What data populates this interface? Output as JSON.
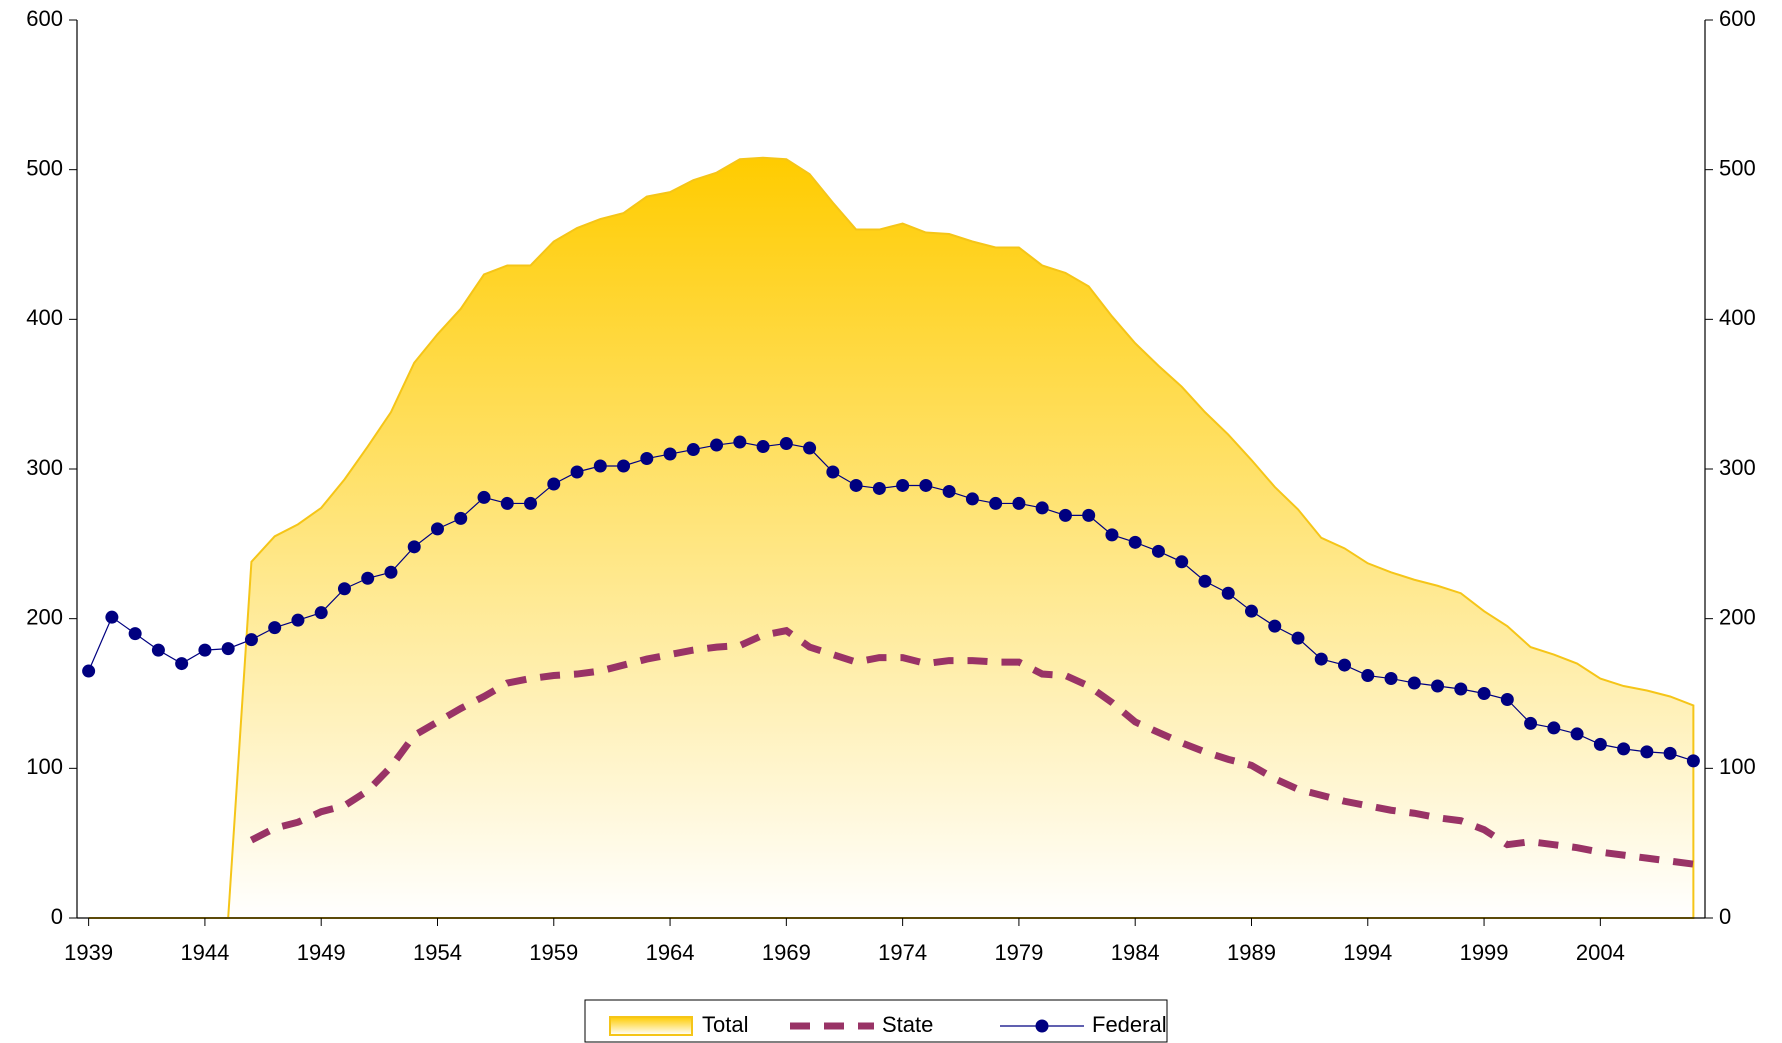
{
  "chart_data": {
    "type": "line",
    "x": [
      1939,
      1940,
      1941,
      1942,
      1943,
      1944,
      1945,
      1946,
      1947,
      1948,
      1949,
      1950,
      1951,
      1952,
      1953,
      1954,
      1955,
      1956,
      1957,
      1958,
      1959,
      1960,
      1961,
      1962,
      1963,
      1964,
      1965,
      1966,
      1967,
      1968,
      1969,
      1970,
      1971,
      1972,
      1973,
      1974,
      1975,
      1976,
      1977,
      1978,
      1979,
      1980,
      1981,
      1982,
      1983,
      1984,
      1985,
      1986,
      1987,
      1988,
      1989,
      1990,
      1991,
      1992,
      1993,
      1994,
      1995,
      1996,
      1997,
      1998,
      1999,
      2000,
      2001,
      2002,
      2003,
      2004,
      2005,
      2006,
      2007,
      2008
    ],
    "xlim": [
      1938.5,
      2008.5
    ],
    "xticks": [
      1939,
      1944,
      1949,
      1954,
      1959,
      1964,
      1969,
      1974,
      1979,
      1984,
      1989,
      1994,
      1999,
      2004
    ],
    "ylim": [
      0,
      600
    ],
    "yticks": [
      0,
      100,
      200,
      300,
      400,
      500,
      600
    ],
    "y2lim": [
      0,
      600
    ],
    "y2ticks": [
      0,
      100,
      200,
      300,
      400,
      500,
      600
    ],
    "series": [
      {
        "name": "Total",
        "color": "#ffcc00",
        "style": "area",
        "values": [
          0,
          0,
          0,
          0,
          0,
          0,
          0,
          238,
          255,
          263,
          274,
          293,
          315,
          338,
          371,
          390,
          407,
          430,
          436,
          436,
          452,
          461,
          467,
          471,
          482,
          485,
          493,
          498,
          507,
          508,
          507,
          497,
          478,
          460,
          460,
          464,
          458,
          457,
          452,
          448,
          448,
          436,
          431,
          422,
          402,
          384,
          369,
          355,
          338,
          323,
          306,
          288,
          273,
          254,
          247,
          237,
          231,
          226,
          222,
          217,
          205,
          195,
          181,
          176,
          170,
          160,
          155,
          152,
          148,
          142
        ]
      },
      {
        "name": "State",
        "color": "#993366",
        "style": "dashed",
        "values": [
          null,
          null,
          null,
          null,
          null,
          null,
          null,
          52,
          60,
          64,
          71,
          75,
          85,
          101,
          122,
          131,
          140,
          148,
          157,
          160,
          162,
          163,
          165,
          169,
          173,
          176,
          179,
          181,
          182,
          189,
          192,
          181,
          176,
          171,
          174,
          174,
          170,
          172,
          172,
          171,
          171,
          163,
          162,
          155,
          144,
          131,
          124,
          117,
          111,
          106,
          102,
          93,
          86,
          82,
          78,
          75,
          72,
          70,
          67,
          65,
          59,
          49,
          51,
          49,
          47,
          44,
          42,
          40,
          38,
          36
        ]
      },
      {
        "name": "Federal",
        "color": "#000080",
        "style": "markers",
        "axis": "y2",
        "values": [
          165,
          201,
          190,
          179,
          170,
          179,
          180,
          186,
          194,
          199,
          204,
          220,
          227,
          231,
          248,
          260,
          267,
          281,
          277,
          277,
          290,
          298,
          302,
          302,
          307,
          310,
          313,
          316,
          318,
          315,
          317,
          314,
          298,
          289,
          287,
          289,
          289,
          285,
          280,
          277,
          277,
          274,
          269,
          269,
          256,
          251,
          245,
          238,
          225,
          217,
          205,
          195,
          187,
          173,
          169,
          162,
          160,
          157,
          155,
          153,
          150,
          146,
          130,
          127,
          123,
          116,
          113,
          111,
          110,
          105
        ]
      }
    ]
  }
}
